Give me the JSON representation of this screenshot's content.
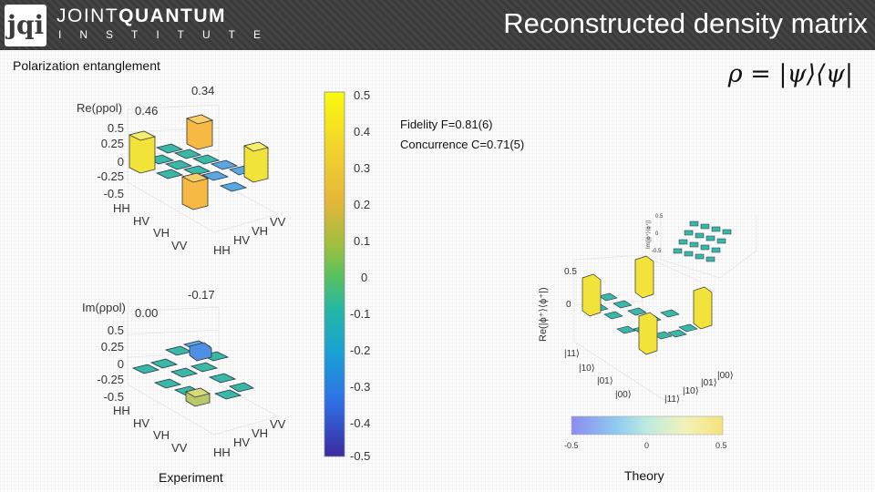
{
  "header": {
    "logo_mark": "jqi",
    "logo_line1_a": "JOINT",
    "logo_line1_b": "QUANTUM",
    "logo_line2": "INSTITUTE",
    "title": "Reconstructed density matrix"
  },
  "subtitle": "Polarization entanglement",
  "formula": "ρ = |ψ⟩⟨ψ|",
  "metrics": {
    "fidelity": "Fidelity F=0.81(6)",
    "concurrence": "Concurrence C=0.71(5)"
  },
  "captions": {
    "experiment": "Experiment",
    "theory": "Theory"
  },
  "colors": {
    "header_bg": "#3c3c3c",
    "bar_yellow": "#f2e33a",
    "bar_orange": "#f5b944",
    "tile_teal": "#3bb7a6",
    "tile_blue": "#5aa7e0"
  },
  "chart_data": [
    {
      "type": "bar3d",
      "name": "experiment-real",
      "title": "Re(ρpol)",
      "ztick_labels": [
        "0.5",
        "0.25",
        "0",
        "-0.25",
        "-0.5"
      ],
      "x_labels": [
        "HH",
        "HV",
        "VH",
        "VV"
      ],
      "y_labels": [
        "HH",
        "HV",
        "VH",
        "VV"
      ],
      "annotations": [
        "0.46",
        "0.34"
      ]
    },
    {
      "type": "bar3d",
      "name": "experiment-imag",
      "title": "Im(ρpol)",
      "ztick_labels": [
        "0.5",
        "0.25",
        "0",
        "-0.25",
        "-0.5"
      ],
      "x_labels": [
        "HH",
        "HV",
        "VH",
        "VV"
      ],
      "y_labels": [
        "HH",
        "HV",
        "VH",
        "VV"
      ],
      "annotations": [
        "0.00",
        "-0.17"
      ]
    },
    {
      "type": "colorbar",
      "name": "experiment-colorbar",
      "tick_labels": [
        "0.5",
        "0.4",
        "0.3",
        "0.2",
        "0.1",
        "0",
        "-0.1",
        "-0.2",
        "-0.3",
        "-0.4",
        "-0.5"
      ],
      "range": [
        -0.5,
        0.5
      ]
    },
    {
      "type": "bar3d",
      "name": "theory-real",
      "title": "Re(|ϕ⁺⟩⟨ϕ⁺|)",
      "ztick_labels": [
        "0.5",
        "0"
      ],
      "x_labels": [
        "|11⟩",
        "|10⟩",
        "|01⟩",
        "|00⟩"
      ],
      "y_labels": [
        "|11⟩",
        "|10⟩",
        "|01⟩",
        "|00⟩"
      ]
    },
    {
      "type": "bar3d",
      "name": "theory-imag-inset",
      "title": "Im(|ϕ⁺⟩⟨ϕ⁺|)",
      "ztick_labels": [
        "0.5",
        "0",
        "-0.5"
      ]
    },
    {
      "type": "colorbar",
      "name": "theory-colorbar",
      "tick_labels": [
        "-0.5",
        "0",
        "0.5"
      ],
      "range": [
        -0.5,
        0.5
      ]
    }
  ]
}
